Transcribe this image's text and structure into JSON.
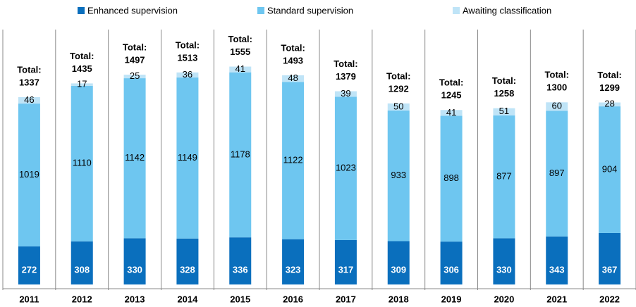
{
  "chart_data": {
    "type": "stacked_bar",
    "categories": [
      "2011",
      "2012",
      "2013",
      "2014",
      "2015",
      "2016",
      "2017",
      "2018",
      "2019",
      "2020",
      "2021",
      "2022"
    ],
    "series": [
      {
        "name": "Enhanced supervision",
        "color": "#0a6fbd",
        "values": [
          272,
          308,
          330,
          328,
          336,
          323,
          317,
          309,
          306,
          330,
          343,
          367
        ]
      },
      {
        "name": "Standard supervision",
        "color": "#6ec6f0",
        "values": [
          1019,
          1110,
          1142,
          1149,
          1178,
          1122,
          1023,
          933,
          898,
          877,
          897,
          904
        ]
      },
      {
        "name": "Awaiting classification",
        "color": "#bfe4f7",
        "values": [
          46,
          17,
          25,
          36,
          41,
          48,
          39,
          50,
          41,
          51,
          60,
          28
        ]
      }
    ],
    "total_label": "Total:",
    "totals": [
      1337,
      1435,
      1497,
      1513,
      1555,
      1493,
      1379,
      1292,
      1245,
      1258,
      1300,
      1299
    ]
  }
}
